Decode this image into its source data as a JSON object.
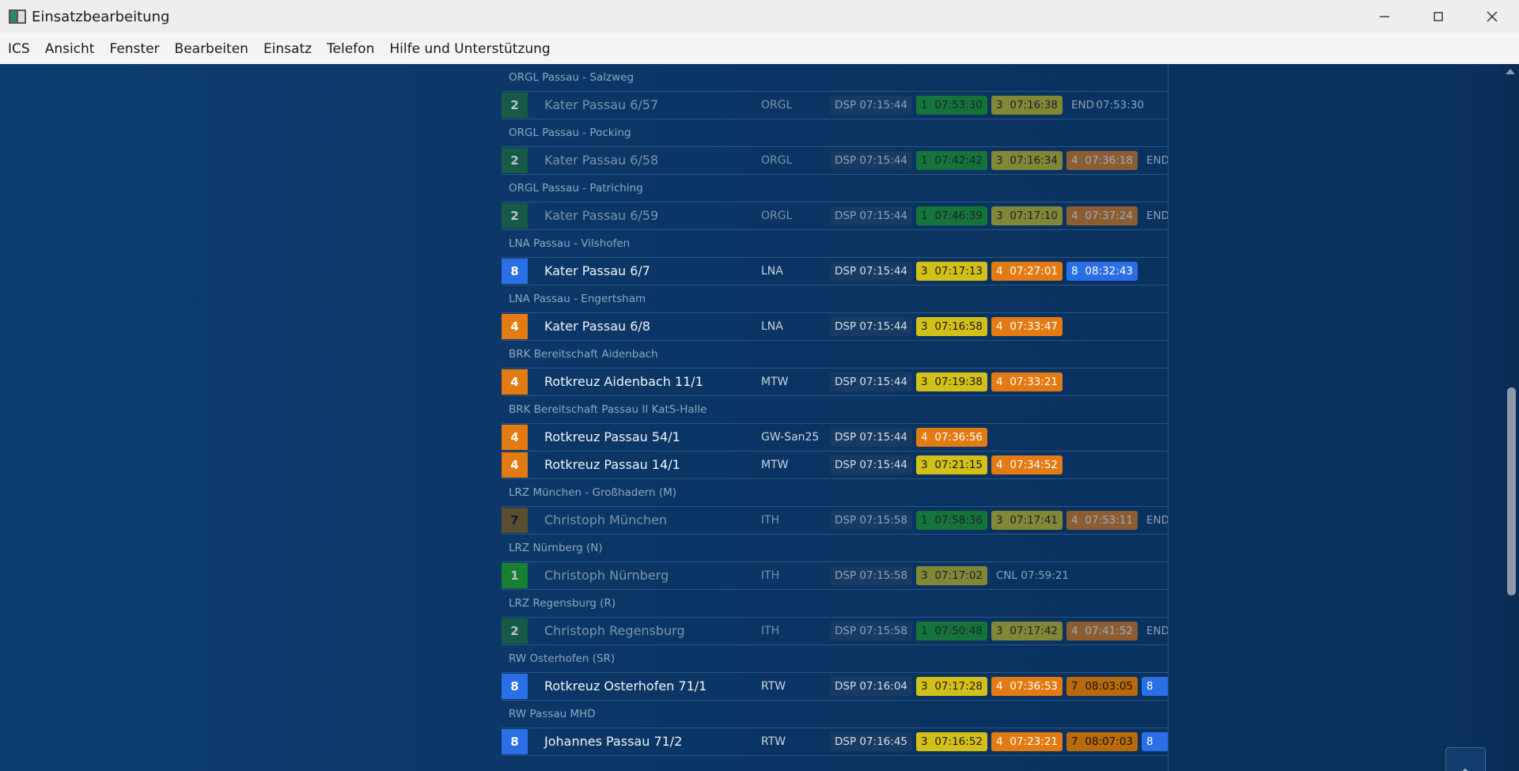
{
  "window": {
    "title": "Einsatzbearbeitung"
  },
  "menu": [
    "ICS",
    "Ansicht",
    "Fenster",
    "Bearbeiten",
    "Einsatz",
    "Telefon",
    "Hilfe und Unterstützung"
  ],
  "groups": [
    {
      "header": "ORGL Passau - Salzweg",
      "units": [
        {
          "status": "2",
          "name": "Kater Passau 6/57",
          "type": "ORGL",
          "active": false,
          "events": [
            {
              "code": "DSP",
              "time": "07:15:44"
            },
            {
              "code": "1",
              "time": "07:53:30"
            },
            {
              "code": "3",
              "time": "07:16:38"
            },
            {
              "code": "END",
              "time": "07:53:30"
            }
          ]
        }
      ]
    },
    {
      "header": "ORGL Passau - Pocking",
      "units": [
        {
          "status": "2",
          "name": "Kater Passau 6/58",
          "type": "ORGL",
          "active": false,
          "events": [
            {
              "code": "DSP",
              "time": "07:15:44"
            },
            {
              "code": "1",
              "time": "07:42:42"
            },
            {
              "code": "3",
              "time": "07:16:34"
            },
            {
              "code": "4",
              "time": "07:36:18"
            },
            {
              "code": "END"
            }
          ]
        }
      ]
    },
    {
      "header": "ORGL Passau - Patriching",
      "units": [
        {
          "status": "2",
          "name": "Kater Passau 6/59",
          "type": "ORGL",
          "active": false,
          "events": [
            {
              "code": "DSP",
              "time": "07:15:44"
            },
            {
              "code": "1",
              "time": "07:46:39"
            },
            {
              "code": "3",
              "time": "07:17:10"
            },
            {
              "code": "4",
              "time": "07:37:24"
            },
            {
              "code": "END"
            }
          ]
        }
      ]
    },
    {
      "header": "LNA Passau - Vilshofen",
      "units": [
        {
          "status": "8",
          "name": "Kater Passau 6/7",
          "type": "LNA",
          "active": true,
          "events": [
            {
              "code": "DSP",
              "time": "07:15:44"
            },
            {
              "code": "3",
              "time": "07:17:13"
            },
            {
              "code": "4",
              "time": "07:27:01"
            },
            {
              "code": "8",
              "time": "08:32:43"
            }
          ]
        }
      ]
    },
    {
      "header": "LNA Passau - Engertsham",
      "units": [
        {
          "status": "4",
          "name": "Kater Passau 6/8",
          "type": "LNA",
          "active": true,
          "events": [
            {
              "code": "DSP",
              "time": "07:15:44"
            },
            {
              "code": "3",
              "time": "07:16:58"
            },
            {
              "code": "4",
              "time": "07:33:47"
            }
          ]
        }
      ]
    },
    {
      "header": "BRK Bereitschaft Aidenbach",
      "units": [
        {
          "status": "4",
          "name": "Rotkreuz Aidenbach 11/1",
          "type": "MTW",
          "active": true,
          "events": [
            {
              "code": "DSP",
              "time": "07:15:44"
            },
            {
              "code": "3",
              "time": "07:19:38"
            },
            {
              "code": "4",
              "time": "07:33:21"
            }
          ]
        }
      ]
    },
    {
      "header": "BRK Bereitschaft Passau II KatS-Halle",
      "units": [
        {
          "status": "4",
          "name": "Rotkreuz Passau 54/1",
          "type": "GW-San25",
          "active": true,
          "events": [
            {
              "code": "DSP",
              "time": "07:15:44"
            },
            {
              "code": "4",
              "time": "07:36:56"
            }
          ]
        },
        {
          "status": "4",
          "name": "Rotkreuz Passau 14/1",
          "type": "MTW",
          "active": true,
          "events": [
            {
              "code": "DSP",
              "time": "07:15:44"
            },
            {
              "code": "3",
              "time": "07:21:15"
            },
            {
              "code": "4",
              "time": "07:34:52"
            }
          ]
        }
      ]
    },
    {
      "header": "LRZ München - Großhadern (M)",
      "units": [
        {
          "status": "7",
          "name": "Christoph München",
          "type": "ITH",
          "active": false,
          "events": [
            {
              "code": "DSP",
              "time": "07:15:58"
            },
            {
              "code": "1",
              "time": "07:58:36"
            },
            {
              "code": "3",
              "time": "07:17:41"
            },
            {
              "code": "4",
              "time": "07:53:11"
            },
            {
              "code": "END"
            }
          ]
        }
      ]
    },
    {
      "header": "LRZ Nürnberg (N)",
      "units": [
        {
          "status": "1",
          "name": "Christoph Nürnberg",
          "type": "ITH",
          "active": false,
          "events": [
            {
              "code": "DSP",
              "time": "07:15:58"
            },
            {
              "code": "3",
              "time": "07:17:02"
            },
            {
              "code": "CNL",
              "time": "07:59:21"
            }
          ]
        }
      ]
    },
    {
      "header": "LRZ Regensburg (R)",
      "units": [
        {
          "status": "2",
          "name": "Christoph Regensburg",
          "type": "ITH",
          "active": false,
          "events": [
            {
              "code": "DSP",
              "time": "07:15:58"
            },
            {
              "code": "1",
              "time": "07:50:48"
            },
            {
              "code": "3",
              "time": "07:17:42"
            },
            {
              "code": "4",
              "time": "07:41:52"
            },
            {
              "code": "END"
            }
          ]
        }
      ]
    },
    {
      "header": "RW Osterhofen (SR)",
      "units": [
        {
          "status": "8",
          "name": "Rotkreuz Osterhofen 71/1",
          "type": "RTW",
          "active": true,
          "events": [
            {
              "code": "DSP",
              "time": "07:16:04"
            },
            {
              "code": "3",
              "time": "07:17:28"
            },
            {
              "code": "4",
              "time": "07:36:53"
            },
            {
              "code": "7",
              "time": "08:03:05"
            },
            {
              "code": "8"
            }
          ]
        }
      ]
    },
    {
      "header": "RW Passau MHD",
      "units": [
        {
          "status": "8",
          "name": "Johannes Passau 71/2",
          "type": "RTW",
          "active": true,
          "events": [
            {
              "code": "DSP",
              "time": "07:16:45"
            },
            {
              "code": "3",
              "time": "07:16:52"
            },
            {
              "code": "4",
              "time": "07:23:21"
            },
            {
              "code": "7",
              "time": "08:07:03"
            },
            {
              "code": "8"
            }
          ]
        }
      ]
    }
  ]
}
